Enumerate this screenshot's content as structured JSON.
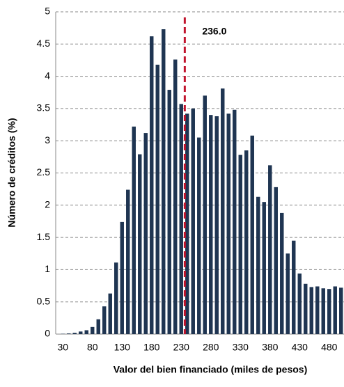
{
  "chart_data": {
    "type": "bar",
    "xlabel": "Valor del bien financiado (miles de pesos)",
    "ylabel": "Número de créditos (%)",
    "categories": [
      30,
      null,
      null,
      null,
      null,
      80,
      null,
      null,
      null,
      null,
      130,
      null,
      null,
      null,
      null,
      180,
      null,
      null,
      null,
      null,
      230,
      null,
      null,
      null,
      null,
      280,
      null,
      null,
      null,
      null,
      330,
      null,
      null,
      null,
      null,
      380,
      null,
      null,
      null,
      null,
      430,
      null,
      null,
      null,
      null,
      480,
      null,
      null
    ],
    "values": [
      0.005,
      0.01,
      0.02,
      0.04,
      0.06,
      0.11,
      0.23,
      0.43,
      0.63,
      1.11,
      1.74,
      2.24,
      3.22,
      2.79,
      3.12,
      4.62,
      4.18,
      4.73,
      3.79,
      4.26,
      3.57,
      3.42,
      3.5,
      3.05,
      3.7,
      3.4,
      3.38,
      3.81,
      3.42,
      3.48,
      2.78,
      2.85,
      3.08,
      2.13,
      2.05,
      2.62,
      2.28,
      1.88,
      1.25,
      1.45,
      0.94,
      0.78,
      0.73,
      0.74,
      0.71,
      0.7,
      0.74,
      0.72
    ],
    "color": "#1f3552",
    "ylim": [
      0,
      5
    ],
    "yticks": [
      0,
      0.5,
      1,
      1.5,
      2,
      2.5,
      3,
      3.5,
      4,
      4.5,
      5
    ],
    "grid": true,
    "reference_line": {
      "value": 236.0,
      "label": "236.0",
      "color": "#c0142d"
    }
  }
}
